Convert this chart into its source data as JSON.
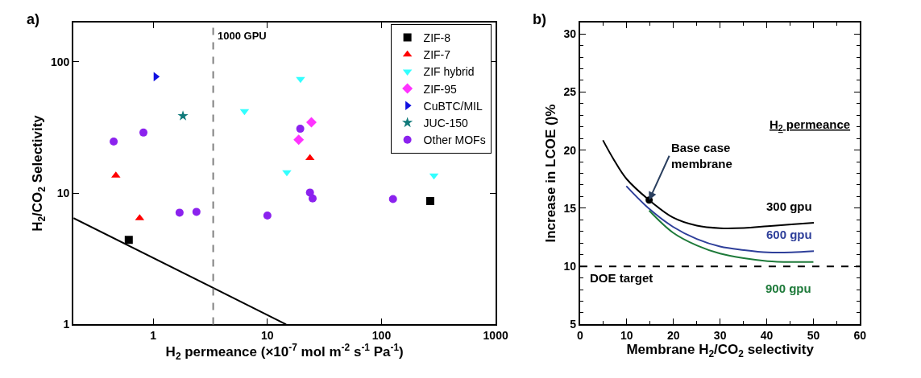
{
  "chart_data": [
    {
      "type": "scatter",
      "title": "a)",
      "xlabel": "H$_{2}$ permeance (×10$^{-7}$ mol m$^{-2}$ s$^{-1}$ Pa$^{-1}$)",
      "ylabel": "H$_{2}$/CO$_{2}$ Selectivity",
      "log": "xy",
      "xlim": [
        0.2,
        1000
      ],
      "ylim": [
        1,
        200
      ],
      "xticks": [
        1,
        10,
        100,
        1000
      ],
      "yticks": [
        1,
        10,
        100
      ],
      "legend": "top right",
      "ref_lines": [
        {
          "axis": "x",
          "value": 3.35,
          "label": "1000 GPU",
          "color": "#808080",
          "line_style": "dashed"
        }
      ],
      "series": [
        {
          "name": "ZIF-8",
          "color": "#000000",
          "marker": "square",
          "x": [
            0.61,
            267
          ],
          "values": [
            4.4,
            8.7
          ]
        },
        {
          "name": "ZIF-7",
          "color": "#ff0000",
          "marker": "triangle",
          "x": [
            0.47,
            0.76,
            23.6
          ],
          "values": [
            13.6,
            6.45,
            18.5
          ]
        },
        {
          "name": "ZIF hybrid",
          "color": "#33ffff",
          "marker": "triangle-down",
          "x": [
            19.5,
            6.3,
            14.8,
            288
          ],
          "values": [
            74,
            42,
            14.4,
            13.6
          ]
        },
        {
          "name": "ZIF-95",
          "color": "#ff33ff",
          "marker": "diamond",
          "x": [
            24.3,
            18.8
          ],
          "values": [
            34.6,
            25.5
          ]
        },
        {
          "name": "CuBTC/MIL",
          "color": "#1010e0",
          "marker": "triangle-right",
          "x": [
            1.05
          ],
          "values": [
            77
          ]
        },
        {
          "name": "JUC-150",
          "color": "#107a7a",
          "marker": "star",
          "x": [
            1.82
          ],
          "values": [
            38.7
          ]
        },
        {
          "name": "Other MOFs",
          "color": "#8b22ee",
          "marker": "circle",
          "x": [
            0.45,
            0.82,
            19.4,
            1.7,
            2.39,
            10,
            23.6,
            24.9,
            126
          ],
          "values": [
            24.7,
            28.9,
            30.9,
            7.1,
            7.2,
            6.75,
            10.1,
            9.1,
            9.0
          ]
        },
        {
          "type": "line",
          "color": "#000000",
          "marker": "none",
          "x": [
            0.2,
            14.6
          ],
          "values": [
            6.45,
            1
          ]
        }
      ]
    },
    {
      "type": "line",
      "title": "b)",
      "xlabel": "Membrane H$_{2}$/CO$_{2}$ selectivity",
      "ylabel": "Increase in LCOE ()%",
      "xlim": [
        0,
        60
      ],
      "ylim": [
        5,
        31
      ],
      "xticks": [
        0,
        10,
        20,
        30,
        40,
        50,
        60
      ],
      "yticks": [
        5,
        10,
        15,
        20,
        25,
        30
      ],
      "legend": false,
      "marker": "none",
      "line_style": "solid",
      "ref_lines": [
        {
          "axis": "y",
          "value": 10,
          "label": "DOE target",
          "color": "#000000",
          "line_style": "dashed"
        }
      ],
      "annotations": [
        {
          "text": "Base case membrane",
          "x": 14.8,
          "y": 15.7
        },
        "H$_{2}$ permeance"
      ],
      "series": [
        {
          "name": "300 gpu",
          "color": "#000000",
          "x": [
            4.9,
            7.2,
            10,
            14.8,
            19.9,
            25,
            30,
            35.1,
            40.2,
            45.3,
            50.1
          ],
          "values": [
            20.85,
            19.2,
            17.5,
            15.7,
            14.2,
            13.5,
            13.28,
            13.3,
            13.45,
            13.6,
            13.75
          ]
        },
        {
          "name": "600 gpu",
          "color": "#2e3f9a",
          "x": [
            9.9,
            14.8,
            19.9,
            25,
            30,
            35.1,
            40.2,
            45.3,
            50.1
          ],
          "values": [
            16.9,
            14.95,
            13.4,
            12.35,
            11.7,
            11.4,
            11.2,
            11.2,
            11.3
          ]
        },
        {
          "name": "900 gpu",
          "color": "#1e7a3a",
          "x": [
            14.8,
            19.9,
            25,
            30,
            35.1,
            40.2,
            45.3,
            50
          ],
          "values": [
            14.8,
            12.9,
            11.8,
            11.1,
            10.7,
            10.45,
            10.37,
            10.37
          ]
        }
      ]
    }
  ]
}
